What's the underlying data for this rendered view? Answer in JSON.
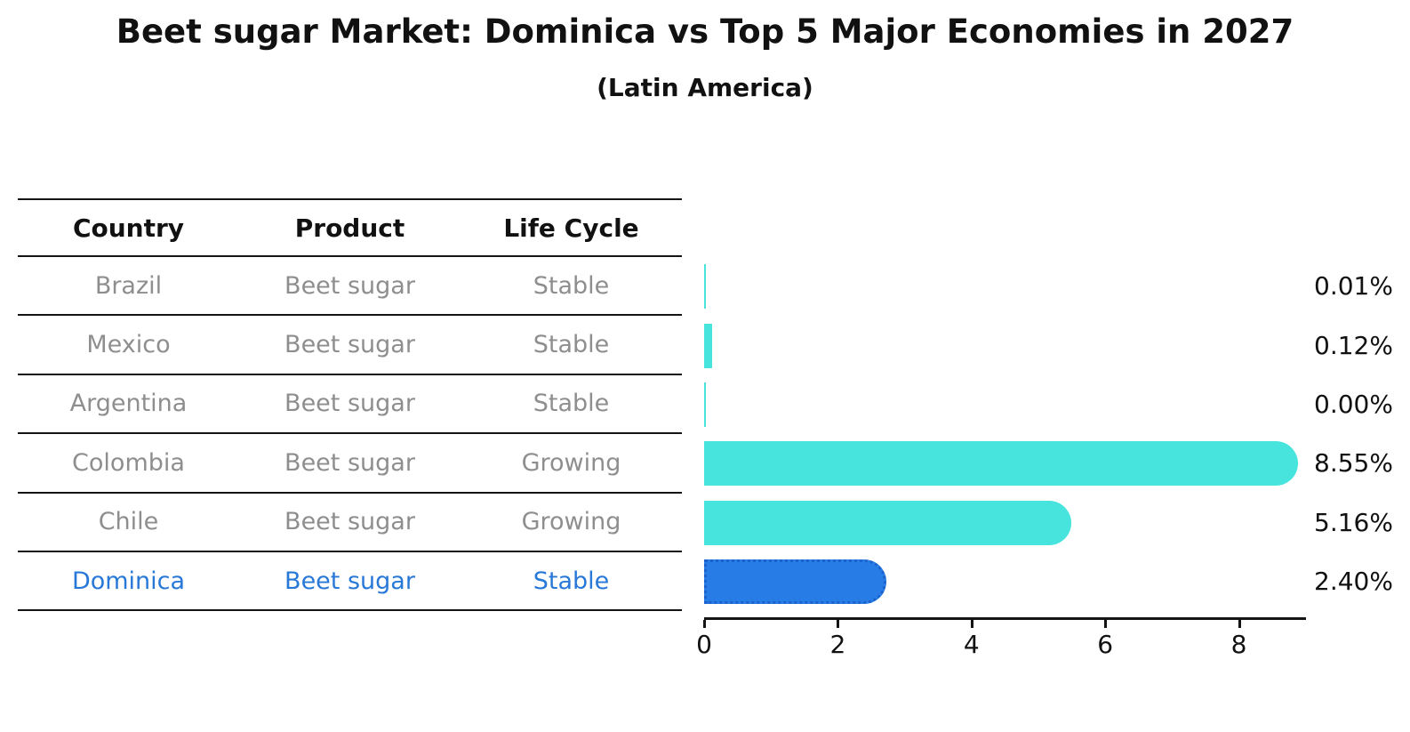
{
  "title": "Beet sugar Market: Dominica vs Top 5 Major Economies in 2027",
  "subtitle": "(Latin America)",
  "table": {
    "headers": [
      "Country",
      "Product",
      "Life Cycle"
    ]
  },
  "chart_data": {
    "type": "bar",
    "orientation": "horizontal",
    "title": "Beet sugar Market: Dominica vs Top 5 Major Economies in 2027",
    "subtitle": "(Latin America)",
    "rows": [
      {
        "country": "Brazil",
        "product": "Beet sugar",
        "life_cycle": "Stable",
        "value": 0.01,
        "label": "0.01%",
        "highlight": false
      },
      {
        "country": "Mexico",
        "product": "Beet sugar",
        "life_cycle": "Stable",
        "value": 0.12,
        "label": "0.12%",
        "highlight": false
      },
      {
        "country": "Argentina",
        "product": "Beet sugar",
        "life_cycle": "Stable",
        "value": 0.0,
        "label": "0.00%",
        "highlight": false
      },
      {
        "country": "Colombia",
        "product": "Beet sugar",
        "life_cycle": "Growing",
        "value": 8.55,
        "label": "8.55%",
        "highlight": false
      },
      {
        "country": "Chile",
        "product": "Beet sugar",
        "life_cycle": "Growing",
        "value": 5.16,
        "label": "5.16%",
        "highlight": false
      },
      {
        "country": "Dominica",
        "product": "Beet sugar",
        "life_cycle": "Stable",
        "value": 2.4,
        "label": "2.40%",
        "highlight": true
      }
    ],
    "x_axis": {
      "min": 0,
      "max": 9,
      "ticks": [
        0,
        2,
        4,
        6,
        8
      ]
    },
    "grid": false,
    "legend": false,
    "colors": {
      "bar": "#46E4DC",
      "highlight_bar": "#287CE5",
      "highlight_border": "#1B62CC",
      "row_text": "#8E8E8E",
      "highlight_text": "#2878D8",
      "axis_text": "#111111"
    }
  }
}
